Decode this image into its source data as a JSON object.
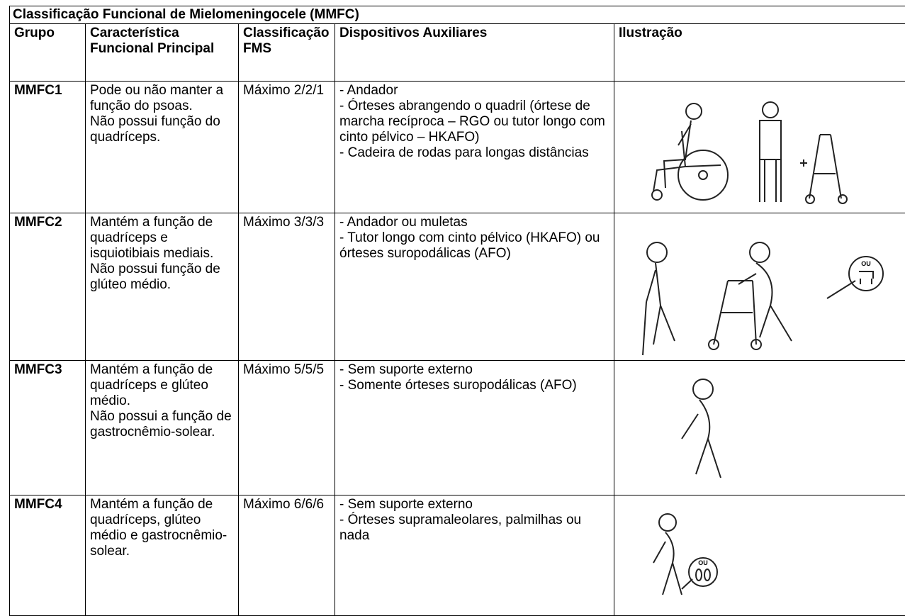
{
  "table": {
    "title": "Classificação Funcional de Mielomeningocele (MMFC)",
    "headers": [
      "Grupo",
      "Característica Funcional Principal",
      "Classificação FMS",
      "Dispositivos Auxiliares",
      "Ilustração"
    ],
    "rows": [
      {
        "group": "MMFC1",
        "characteristic": [
          "Pode ou não manter a função do psoas.",
          "Não possui função do quadríceps."
        ],
        "fms": "Máximo 2/2/1",
        "devices": [
          "- Andador",
          "- Órteses abrangendo o quadril (órtese de marcha recíproca – RGO ou tutor longo com cinto pélvico – HKAFO)",
          "- Cadeira de rodas para longas distâncias"
        ]
      },
      {
        "group": "MMFC2",
        "characteristic": [
          "Mantém a função de quadríceps e isquiotibiais mediais.",
          "Não possui função de glúteo médio."
        ],
        "fms": "Máximo 3/3/3",
        "devices": [
          "- Andador ou muletas",
          "- Tutor longo com cinto pélvico (HKAFO) ou órteses suropodálicas (AFO)"
        ],
        "illustration_label": "OU"
      },
      {
        "group": "MMFC3",
        "characteristic": [
          "Mantém a função de quadríceps e glúteo médio.",
          "Não possui a função de gastrocnêmio-solear."
        ],
        "fms": "Máximo 5/5/5",
        "devices": [
          "- Sem suporte externo",
          "- Somente órteses suropodálicas (AFO)"
        ]
      },
      {
        "group": "MMFC4",
        "characteristic": [
          "Mantém a função de quadríceps, glúteo médio e gastrocnêmio-solear."
        ],
        "fms": "Máximo 6/6/6",
        "devices": [
          "- Sem suporte externo",
          "- Órteses supramaleolares, palmilhas ou nada"
        ],
        "illustration_label": "OU"
      }
    ]
  }
}
